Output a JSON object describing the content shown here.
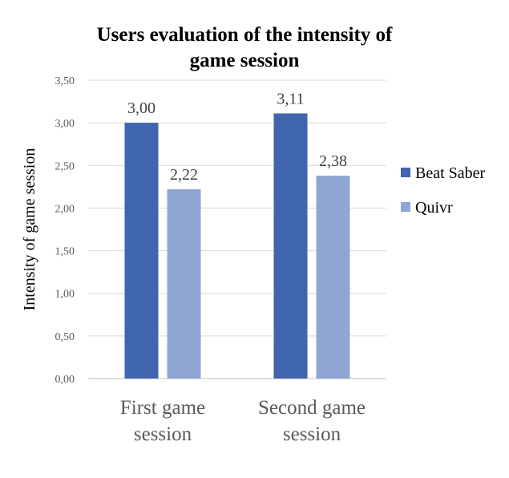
{
  "chart_data": {
    "type": "bar",
    "title_lines": [
      "Users evaluation of the intensity of",
      "game session"
    ],
    "ylabel": "Intensity of game session",
    "xlabel": "",
    "categories": [
      [
        "First game",
        "session"
      ],
      [
        "Second game",
        "session"
      ]
    ],
    "series": [
      {
        "name": "Beat Saber",
        "color": "#3F65AE",
        "values": [
          3.0,
          3.11
        ],
        "labels": [
          "3,00",
          "3,11"
        ]
      },
      {
        "name": "Quivr",
        "color": "#8FA6D5",
        "values": [
          2.22,
          2.38
        ],
        "labels": [
          "2,22",
          "2,38"
        ]
      }
    ],
    "ylim": [
      0,
      3.5
    ],
    "yticks": [
      0,
      0.5,
      1,
      1.5,
      2,
      2.5,
      3,
      3.5
    ],
    "ytick_labels": [
      "0,00",
      "0,50",
      "1,00",
      "1,50",
      "2,00",
      "2,50",
      "3,00",
      "3,50"
    ],
    "grid": true,
    "legend_position": "right"
  }
}
